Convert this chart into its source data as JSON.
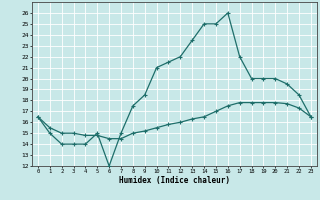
{
  "title": "",
  "xlabel": "Humidex (Indice chaleur)",
  "ylabel": "",
  "xlim": [
    -0.5,
    23.5
  ],
  "ylim": [
    12,
    27
  ],
  "yticks": [
    12,
    13,
    14,
    15,
    16,
    17,
    18,
    19,
    20,
    21,
    22,
    23,
    24,
    25,
    26
  ],
  "xticks": [
    0,
    1,
    2,
    3,
    4,
    5,
    6,
    7,
    8,
    9,
    10,
    11,
    12,
    13,
    14,
    15,
    16,
    17,
    18,
    19,
    20,
    21,
    22,
    23
  ],
  "bg_color": "#c8e8e8",
  "grid_color": "#ffffff",
  "line_color": "#1e6e6a",
  "line1_x": [
    0,
    1,
    2,
    3,
    4,
    5,
    6,
    7,
    8,
    9,
    10,
    11,
    12,
    13,
    14,
    15,
    16,
    17,
    18,
    19,
    20,
    21,
    22,
    23
  ],
  "line1_y": [
    16.5,
    15.0,
    14.0,
    14.0,
    14.0,
    15.0,
    12.0,
    15.0,
    17.5,
    18.5,
    21.0,
    21.5,
    22.0,
    23.5,
    25.0,
    25.0,
    26.0,
    22.0,
    20.0,
    20.0,
    20.0,
    19.5,
    18.5,
    16.5
  ],
  "line2_x": [
    0,
    1,
    2,
    3,
    4,
    5,
    6,
    7,
    8,
    9,
    10,
    11,
    12,
    13,
    14,
    15,
    16,
    17,
    18,
    19,
    20,
    21,
    22,
    23
  ],
  "line2_y": [
    16.5,
    15.5,
    15.0,
    15.0,
    14.8,
    14.8,
    14.5,
    14.5,
    15.0,
    15.2,
    15.5,
    15.8,
    16.0,
    16.3,
    16.5,
    17.0,
    17.5,
    17.8,
    17.8,
    17.8,
    17.8,
    17.7,
    17.3,
    16.5
  ],
  "marker": "+",
  "markersize": 3,
  "linewidth": 0.9
}
